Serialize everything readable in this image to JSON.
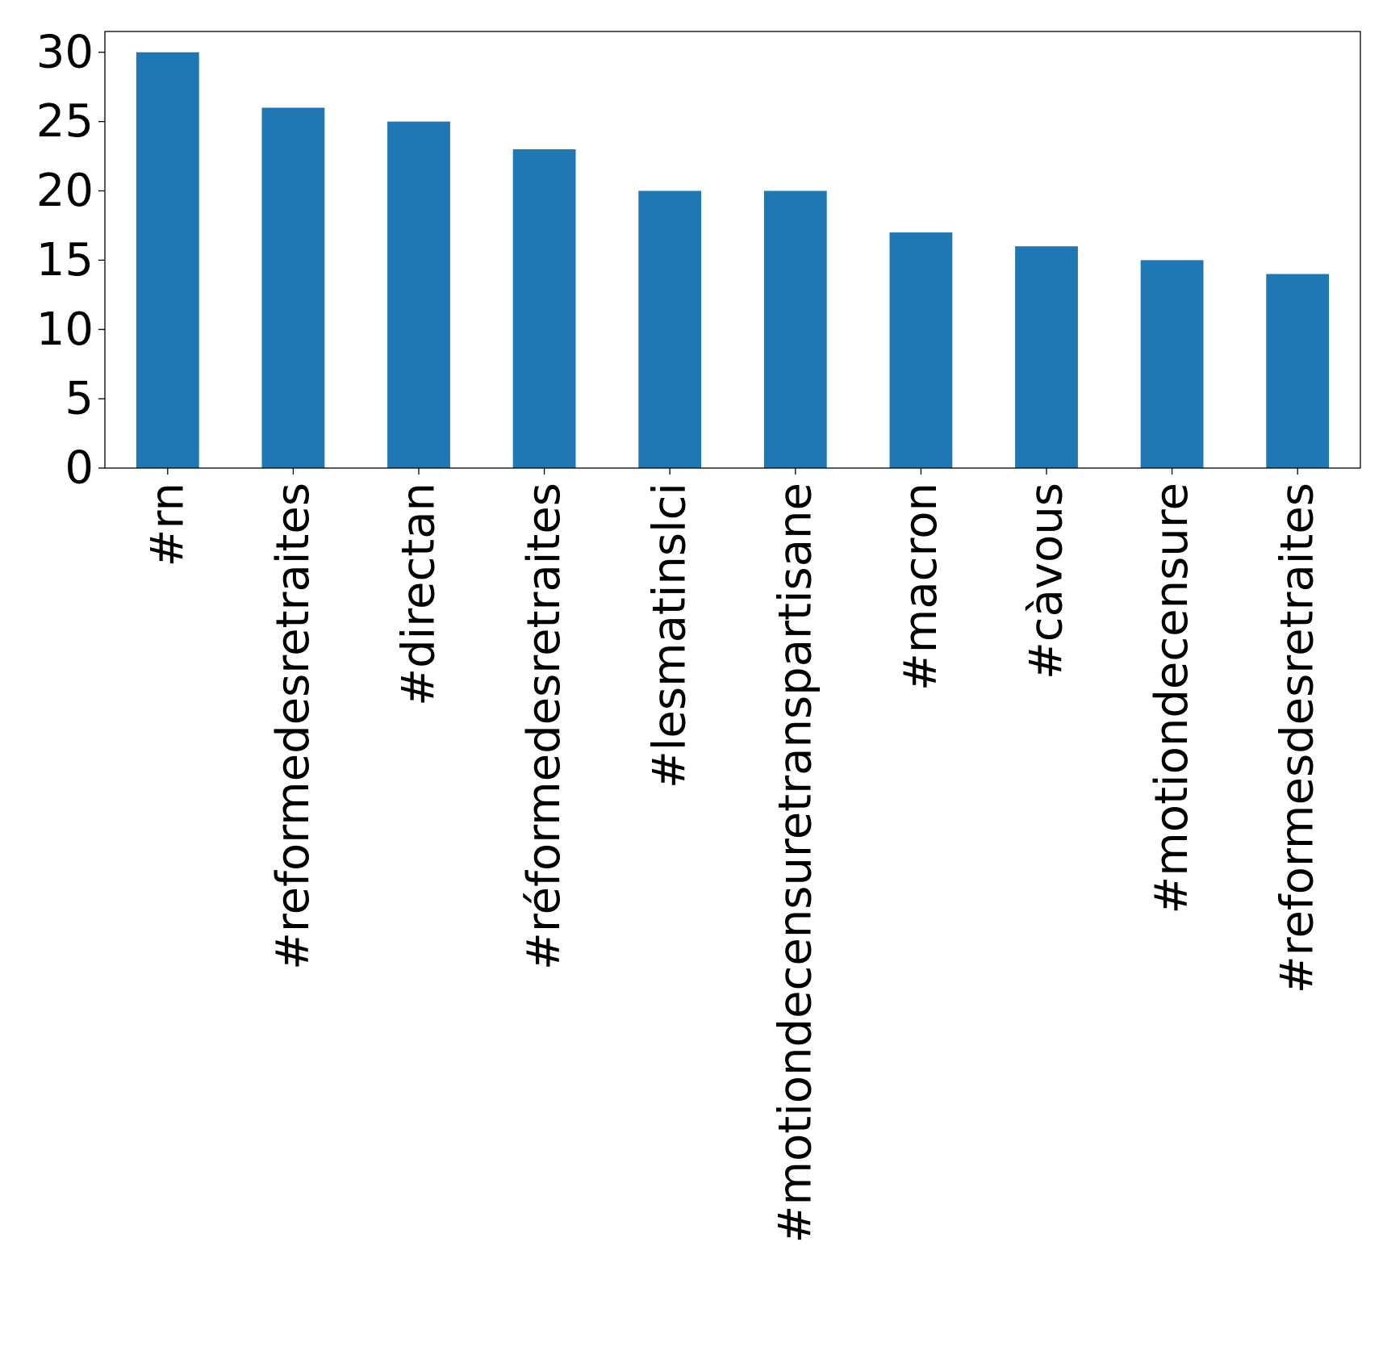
{
  "chart_data": {
    "type": "bar",
    "title": "",
    "xlabel": "",
    "ylabel": "",
    "categories": [
      "#rn",
      "#reformedesretraites",
      "#directan",
      "#réformedesretraites",
      "#lesmatinslci",
      "#motiondecensuretranspartisane",
      "#macron",
      "#càvous",
      "#motiondecensure",
      "#reformesdesretraites"
    ],
    "values": [
      30,
      26,
      25,
      23,
      20,
      20,
      17,
      16,
      15,
      14
    ],
    "ylim": [
      0,
      31.5
    ],
    "yticks": [
      "0",
      "5",
      "10",
      "15",
      "20",
      "25",
      "30"
    ],
    "grid": false,
    "legend": "none",
    "colors": {
      "bar": "#1f77b4",
      "axis": "#000000",
      "background": "#ffffff"
    }
  }
}
